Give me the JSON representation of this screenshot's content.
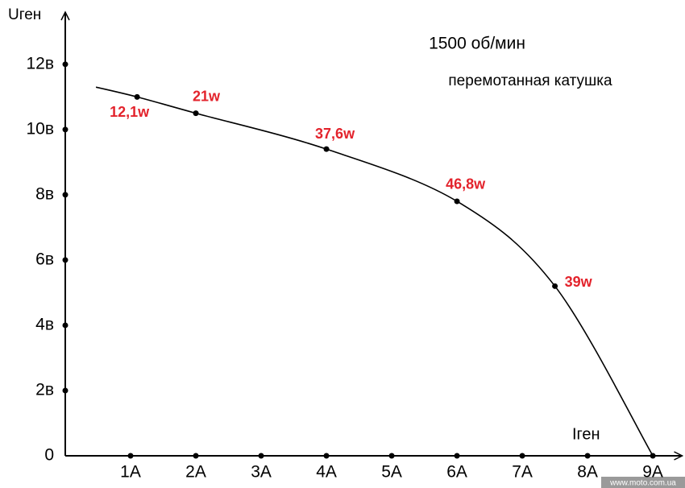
{
  "chart_data": {
    "type": "line",
    "title": "1500 об/мин",
    "subtitle": "перемотанная катушка",
    "x_label": "Iген",
    "y_label": "Uген",
    "watermark": "www.moto.com.ua",
    "series": [
      {
        "color": "#000000",
        "x": [
          0.47,
          1.1,
          2,
          4,
          6,
          7.5,
          9
        ],
        "values": [
          11.3,
          11,
          10.5,
          9.4,
          7.8,
          5.2,
          0
        ]
      }
    ],
    "annotations": [
      {
        "x": 1.1,
        "y": 11,
        "text": "12,1w"
      },
      {
        "x": 2,
        "y": 10.5,
        "text": "21w"
      },
      {
        "x": 4,
        "y": 9.4,
        "text": "37,6w"
      },
      {
        "x": 6,
        "y": 7.8,
        "text": "46,8w"
      },
      {
        "x": 7.5,
        "y": 5.2,
        "text": "39w"
      }
    ],
    "annotation_color": "#e3232c",
    "xlim": [
      0,
      9.4
    ],
    "ylim": [
      0,
      13.6
    ],
    "xticks": [
      {
        "value": 1,
        "label": "1A"
      },
      {
        "value": 2,
        "label": "2A"
      },
      {
        "value": 3,
        "label": "3A"
      },
      {
        "value": 4,
        "label": "4A"
      },
      {
        "value": 5,
        "label": "5A"
      },
      {
        "value": 6,
        "label": "6A"
      },
      {
        "value": 7,
        "label": "7A"
      },
      {
        "value": 8,
        "label": "8A"
      },
      {
        "value": 9,
        "label": "9A"
      }
    ],
    "yticks": [
      0,
      {
        "value": 2,
        "label": "2в"
      },
      {
        "value": 4,
        "label": "4в"
      },
      {
        "value": 6,
        "label": "6в"
      },
      {
        "value": 8,
        "label": "8в"
      },
      {
        "value": 10,
        "label": "10в"
      },
      {
        "value": 12,
        "label": "12в"
      }
    ]
  }
}
